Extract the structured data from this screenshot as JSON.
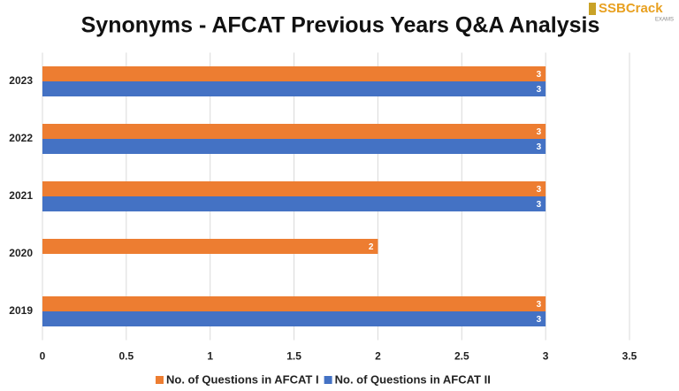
{
  "chart_data": {
    "type": "hbar",
    "title": "Synonyms - AFCAT Previous Years Q&A Analysis",
    "watermark": "SSBCrack",
    "watermark_sub": "EXAMS",
    "categories": [
      "2023",
      "2022",
      "2021",
      "2020",
      "2019"
    ],
    "series": [
      {
        "name": "No. of Questions in AFCAT I",
        "color": "#ed7d31",
        "values": [
          3,
          3,
          3,
          2,
          3
        ]
      },
      {
        "name": "No. of Questions in AFCAT II",
        "color": "#4472c4",
        "values": [
          3,
          3,
          3,
          null,
          3
        ]
      }
    ],
    "xlim": [
      0,
      3.5
    ],
    "xticks": [
      0,
      0.5,
      1,
      1.5,
      2,
      2.5,
      3,
      3.5
    ],
    "grid": true
  }
}
